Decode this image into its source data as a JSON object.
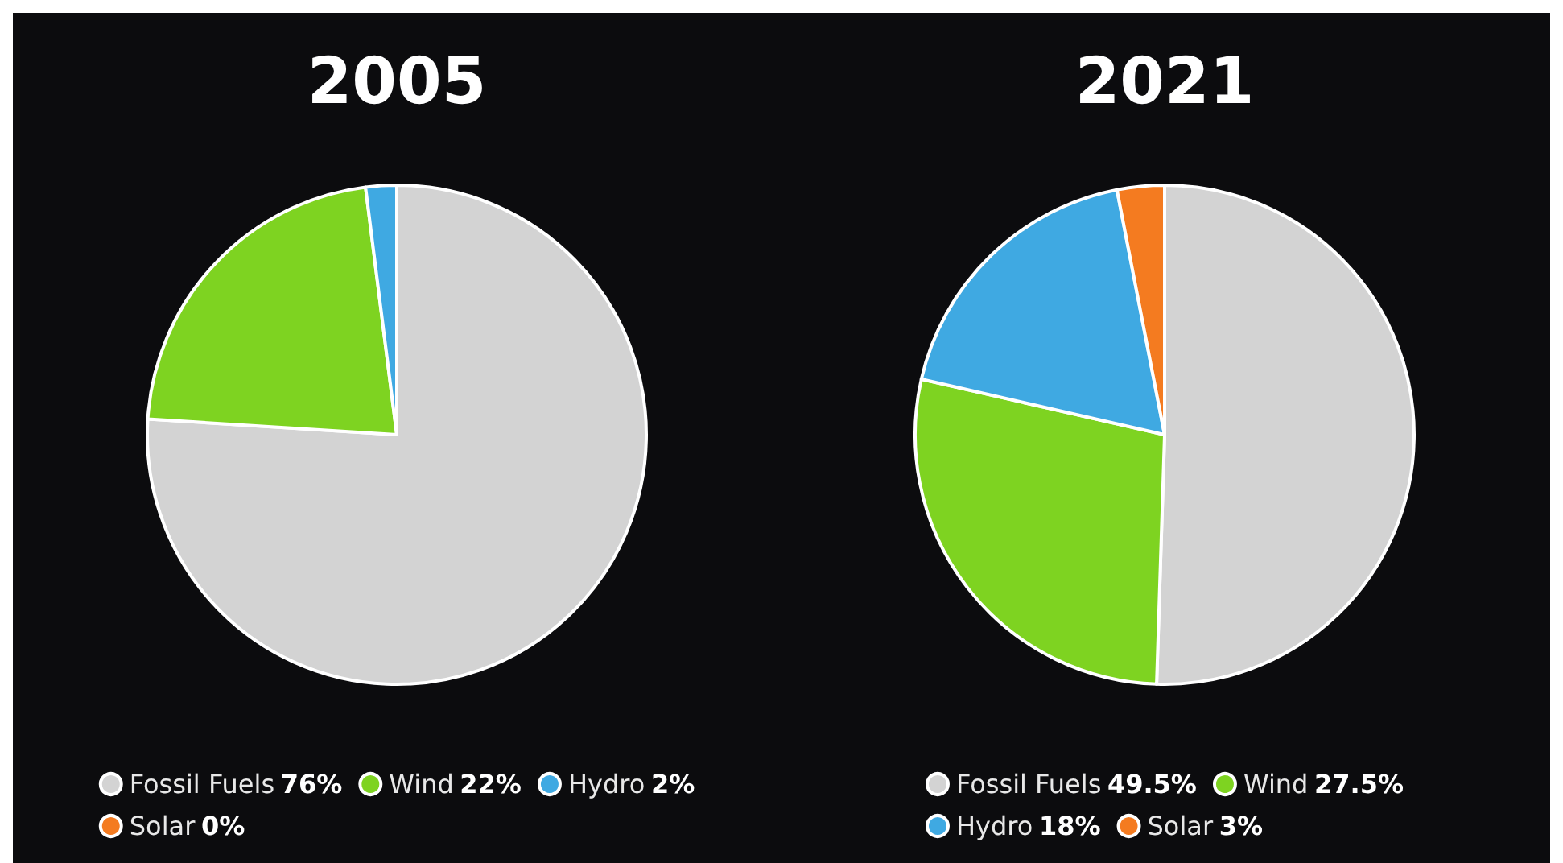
{
  "chart_data": [
    {
      "type": "pie",
      "title": "2005",
      "categories": [
        "Fossil Fuels",
        "Wind",
        "Hydro",
        "Solar"
      ],
      "values": [
        76,
        22,
        2,
        0
      ],
      "colors": [
        "#d3d3d3",
        "#7ed321",
        "#3fa9e2",
        "#f47b20"
      ],
      "value_labels": [
        "76%",
        "22%",
        "2%",
        "0%"
      ],
      "legend": "bottom"
    },
    {
      "type": "pie",
      "title": "2021",
      "categories": [
        "Fossil Fuels",
        "Wind",
        "Hydro",
        "Solar"
      ],
      "values": [
        49.5,
        27.5,
        18,
        3
      ],
      "colors": [
        "#d3d3d3",
        "#7ed321",
        "#3fa9e2",
        "#f47b20"
      ],
      "value_labels": [
        "49.5%",
        "27.5%",
        "18%",
        "3%"
      ],
      "legend": "bottom"
    }
  ]
}
